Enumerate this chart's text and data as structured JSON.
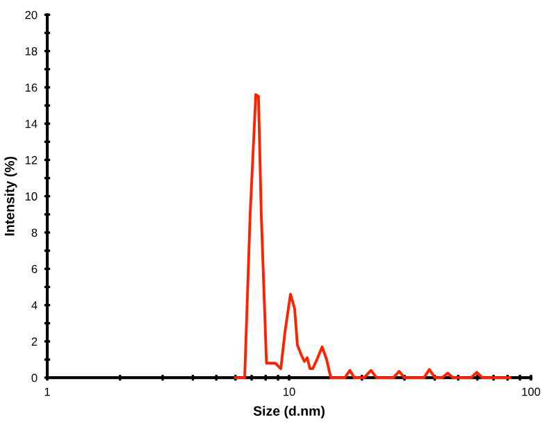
{
  "chart_data": {
    "type": "line",
    "xlabel": "Size (d.nm)",
    "ylabel": "Intensity (%)",
    "log": "x",
    "x": [
      6.0,
      6.55,
      6.9,
      7.28,
      7.47,
      7.67,
      8.06,
      8.42,
      8.76,
      9.24,
      9.61,
      10.13,
      10.54,
      10.82,
      11.27,
      11.56,
      11.88,
      12.19,
      12.52,
      13.03,
      13.69,
      14.29,
      14.87,
      16.98,
      17.83,
      18.62,
      20.4,
      21.8,
      23.0,
      27.0,
      28.5,
      30.0,
      36.1,
      38.0,
      40.1,
      42.9,
      45.2,
      47.7,
      56.6,
      59.7,
      62.9,
      81.7
    ],
    "series": [
      {
        "color": "#ff2200",
        "values": [
          0,
          0,
          9.0,
          15.6,
          15.5,
          9.0,
          0.8,
          0.8,
          0.8,
          0.5,
          2.5,
          4.6,
          3.8,
          1.8,
          1.2,
          0.9,
          1.1,
          0.5,
          0.5,
          1.0,
          1.7,
          1.0,
          0,
          0,
          0.4,
          0,
          0,
          0.4,
          0,
          0,
          0.35,
          0,
          0,
          0.45,
          0,
          0,
          0.25,
          0,
          0,
          0.3,
          0,
          0
        ]
      }
    ],
    "xlim": [
      1,
      100
    ],
    "ylim": [
      0,
      20
    ],
    "xticks": [
      1,
      {
        "value": 2,
        "label": null
      },
      {
        "value": 3,
        "label": null
      },
      {
        "value": 4,
        "label": null
      },
      {
        "value": 5,
        "label": null
      },
      {
        "value": 6,
        "label": null
      },
      {
        "value": 7,
        "label": null
      },
      {
        "value": 8,
        "label": null
      },
      {
        "value": 9,
        "label": null
      },
      10,
      {
        "value": 20,
        "label": null
      },
      {
        "value": 30,
        "label": null
      },
      {
        "value": 40,
        "label": null
      },
      {
        "value": 50,
        "label": null
      },
      {
        "value": 60,
        "label": null
      },
      {
        "value": 70,
        "label": null
      },
      {
        "value": 80,
        "label": null
      },
      {
        "value": 90,
        "label": null
      },
      100
    ],
    "yticks": [
      0,
      {
        "value": 1,
        "label": null
      },
      2,
      {
        "value": 3,
        "label": null
      },
      4,
      {
        "value": 5,
        "label": null
      },
      6,
      {
        "value": 7,
        "label": null
      },
      8,
      {
        "value": 9,
        "label": null
      },
      10,
      {
        "value": 11,
        "label": null
      },
      12,
      {
        "value": 13,
        "label": null
      },
      14,
      {
        "value": 15,
        "label": null
      },
      16,
      {
        "value": 17,
        "label": null
      },
      18,
      {
        "value": 19,
        "label": null
      },
      20
    ]
  }
}
